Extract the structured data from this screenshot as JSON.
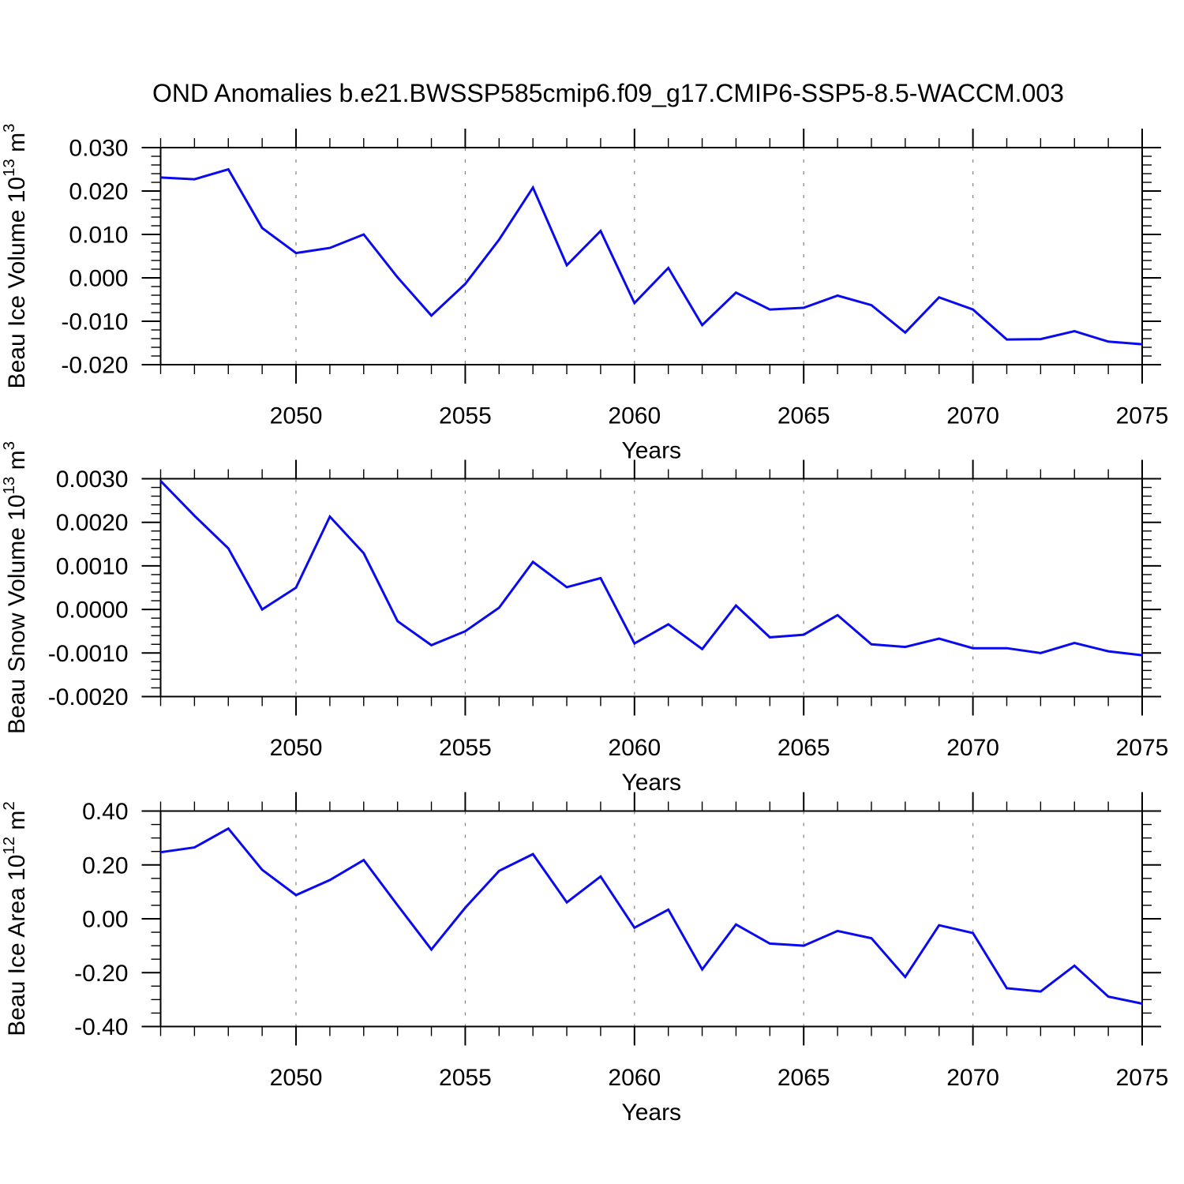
{
  "title": "OND Anomalies b.e21.BWSSP585cmip6.f09_g17.CMIP6-SSP5-8.5-WACCM.003",
  "colors": {
    "line": "#0a0aee",
    "axis": "#000000",
    "grid": "#808080",
    "text": "#000000",
    "background": "#ffffff"
  },
  "chart_data": [
    {
      "type": "line",
      "name": "ice-volume",
      "ylabel_text": "Beau Ice Volume 10^13 m^3",
      "ylabel_segments": [
        {
          "t": "Beau Ice Volume 10"
        },
        {
          "t": "13",
          "sup": true
        },
        {
          "t": " m"
        },
        {
          "t": "3",
          "sup": true
        }
      ],
      "xlabel": "Years",
      "x": [
        2046,
        2047,
        2048,
        2049,
        2050,
        2051,
        2052,
        2053,
        2054,
        2055,
        2056,
        2057,
        2058,
        2059,
        2060,
        2061,
        2062,
        2063,
        2064,
        2065,
        2066,
        2067,
        2068,
        2069,
        2070,
        2071,
        2072,
        2073,
        2074,
        2075
      ],
      "values": [
        0.0231,
        0.0227,
        0.025,
        0.0115,
        0.0057,
        0.0069,
        0.01,
        0.0001,
        -0.0087,
        -0.0014,
        0.0088,
        0.0208,
        0.0029,
        0.0108,
        -0.0058,
        0.0023,
        -0.0109,
        -0.0034,
        -0.0073,
        -0.0069,
        -0.0041,
        -0.0063,
        -0.0126,
        -0.0045,
        -0.0073,
        -0.0142,
        -0.0141,
        -0.0123,
        -0.0147,
        -0.0153
      ],
      "xlim": [
        2046,
        2075
      ],
      "ylim": [
        -0.02,
        0.03
      ],
      "ytick_values": [
        0.03,
        0.02,
        0.01,
        0.0,
        -0.01,
        -0.02
      ],
      "ytick_labels": [
        "0.030",
        "0.020",
        "0.010",
        "0.000",
        "-0.010",
        "-0.020"
      ],
      "yminor_step": 0.002,
      "xtick_values": [
        2050,
        2055,
        2060,
        2065,
        2070,
        2075
      ],
      "xtick_labels": [
        "2050",
        "2055",
        "2060",
        "2065",
        "2070",
        "2075"
      ],
      "xminor_step": 1,
      "grid_x": [
        2050,
        2055,
        2060,
        2065,
        2070
      ],
      "grid": "vertical-dashed",
      "legend": "none"
    },
    {
      "type": "line",
      "name": "snow-volume",
      "ylabel_text": "Beau Snow Volume 10^13 m^3",
      "ylabel_segments": [
        {
          "t": "Beau Snow Volume 10"
        },
        {
          "t": "13",
          "sup": true
        },
        {
          "t": " m"
        },
        {
          "t": "3",
          "sup": true
        }
      ],
      "xlabel": "Years",
      "x": [
        2046,
        2047,
        2048,
        2049,
        2050,
        2051,
        2052,
        2053,
        2054,
        2055,
        2056,
        2057,
        2058,
        2059,
        2060,
        2061,
        2062,
        2063,
        2064,
        2065,
        2066,
        2067,
        2068,
        2069,
        2070,
        2071,
        2072,
        2073,
        2074,
        2075
      ],
      "values": [
        0.00295,
        0.00215,
        0.0014,
        0.0,
        0.0005,
        0.00213,
        0.00129,
        -0.00027,
        -0.00082,
        -0.0005,
        4e-05,
        0.00109,
        0.00051,
        0.00072,
        -0.00078,
        -0.00034,
        -0.00091,
        9e-05,
        -0.00064,
        -0.00058,
        -0.00013,
        -0.0008,
        -0.00086,
        -0.00067,
        -0.00089,
        -0.00089,
        -0.001,
        -0.00077,
        -0.00096,
        -0.00105
      ],
      "xlim": [
        2046,
        2075
      ],
      "ylim": [
        -0.002,
        0.003
      ],
      "ytick_values": [
        0.003,
        0.002,
        0.001,
        0.0,
        -0.001,
        -0.002
      ],
      "ytick_labels": [
        "0.0030",
        "0.0020",
        "0.0010",
        "0.0000",
        "-0.0010",
        "-0.0020"
      ],
      "yminor_step": 0.0002,
      "xtick_values": [
        2050,
        2055,
        2060,
        2065,
        2070,
        2075
      ],
      "xtick_labels": [
        "2050",
        "2055",
        "2060",
        "2065",
        "2070",
        "2075"
      ],
      "xminor_step": 1,
      "grid_x": [
        2050,
        2055,
        2060,
        2065,
        2070
      ],
      "grid": "vertical-dashed",
      "legend": "none"
    },
    {
      "type": "line",
      "name": "ice-area",
      "ylabel_text": "Beau Ice Area 10^12 m^2",
      "ylabel_segments": [
        {
          "t": "Beau Ice Area 10"
        },
        {
          "t": "12",
          "sup": true
        },
        {
          "t": " m"
        },
        {
          "t": "2",
          "sup": true
        }
      ],
      "xlabel": "Years",
      "x": [
        2046,
        2047,
        2048,
        2049,
        2050,
        2051,
        2052,
        2053,
        2054,
        2055,
        2056,
        2057,
        2058,
        2059,
        2060,
        2061,
        2062,
        2063,
        2064,
        2065,
        2066,
        2067,
        2068,
        2069,
        2070,
        2071,
        2072,
        2073,
        2074,
        2075
      ],
      "values": [
        0.247,
        0.265,
        0.335,
        0.182,
        0.088,
        0.144,
        0.218,
        0.05,
        -0.114,
        0.041,
        0.178,
        0.24,
        0.061,
        0.157,
        -0.033,
        0.034,
        -0.188,
        -0.021,
        -0.092,
        -0.1,
        -0.045,
        -0.072,
        -0.216,
        -0.024,
        -0.053,
        -0.258,
        -0.27,
        -0.174,
        -0.289,
        -0.315
      ],
      "xlim": [
        2046,
        2075
      ],
      "ylim": [
        -0.4,
        0.4
      ],
      "ytick_values": [
        0.4,
        0.2,
        0.0,
        -0.2,
        -0.4
      ],
      "ytick_labels": [
        "0.40",
        "0.20",
        "0.00",
        "-0.20",
        "-0.40"
      ],
      "yminor_step": 0.05,
      "xtick_values": [
        2050,
        2055,
        2060,
        2065,
        2070,
        2075
      ],
      "xtick_labels": [
        "2050",
        "2055",
        "2060",
        "2065",
        "2070",
        "2075"
      ],
      "xminor_step": 1,
      "grid_x": [
        2050,
        2055,
        2060,
        2065,
        2070
      ],
      "grid": "vertical-dashed",
      "legend": "none"
    }
  ]
}
